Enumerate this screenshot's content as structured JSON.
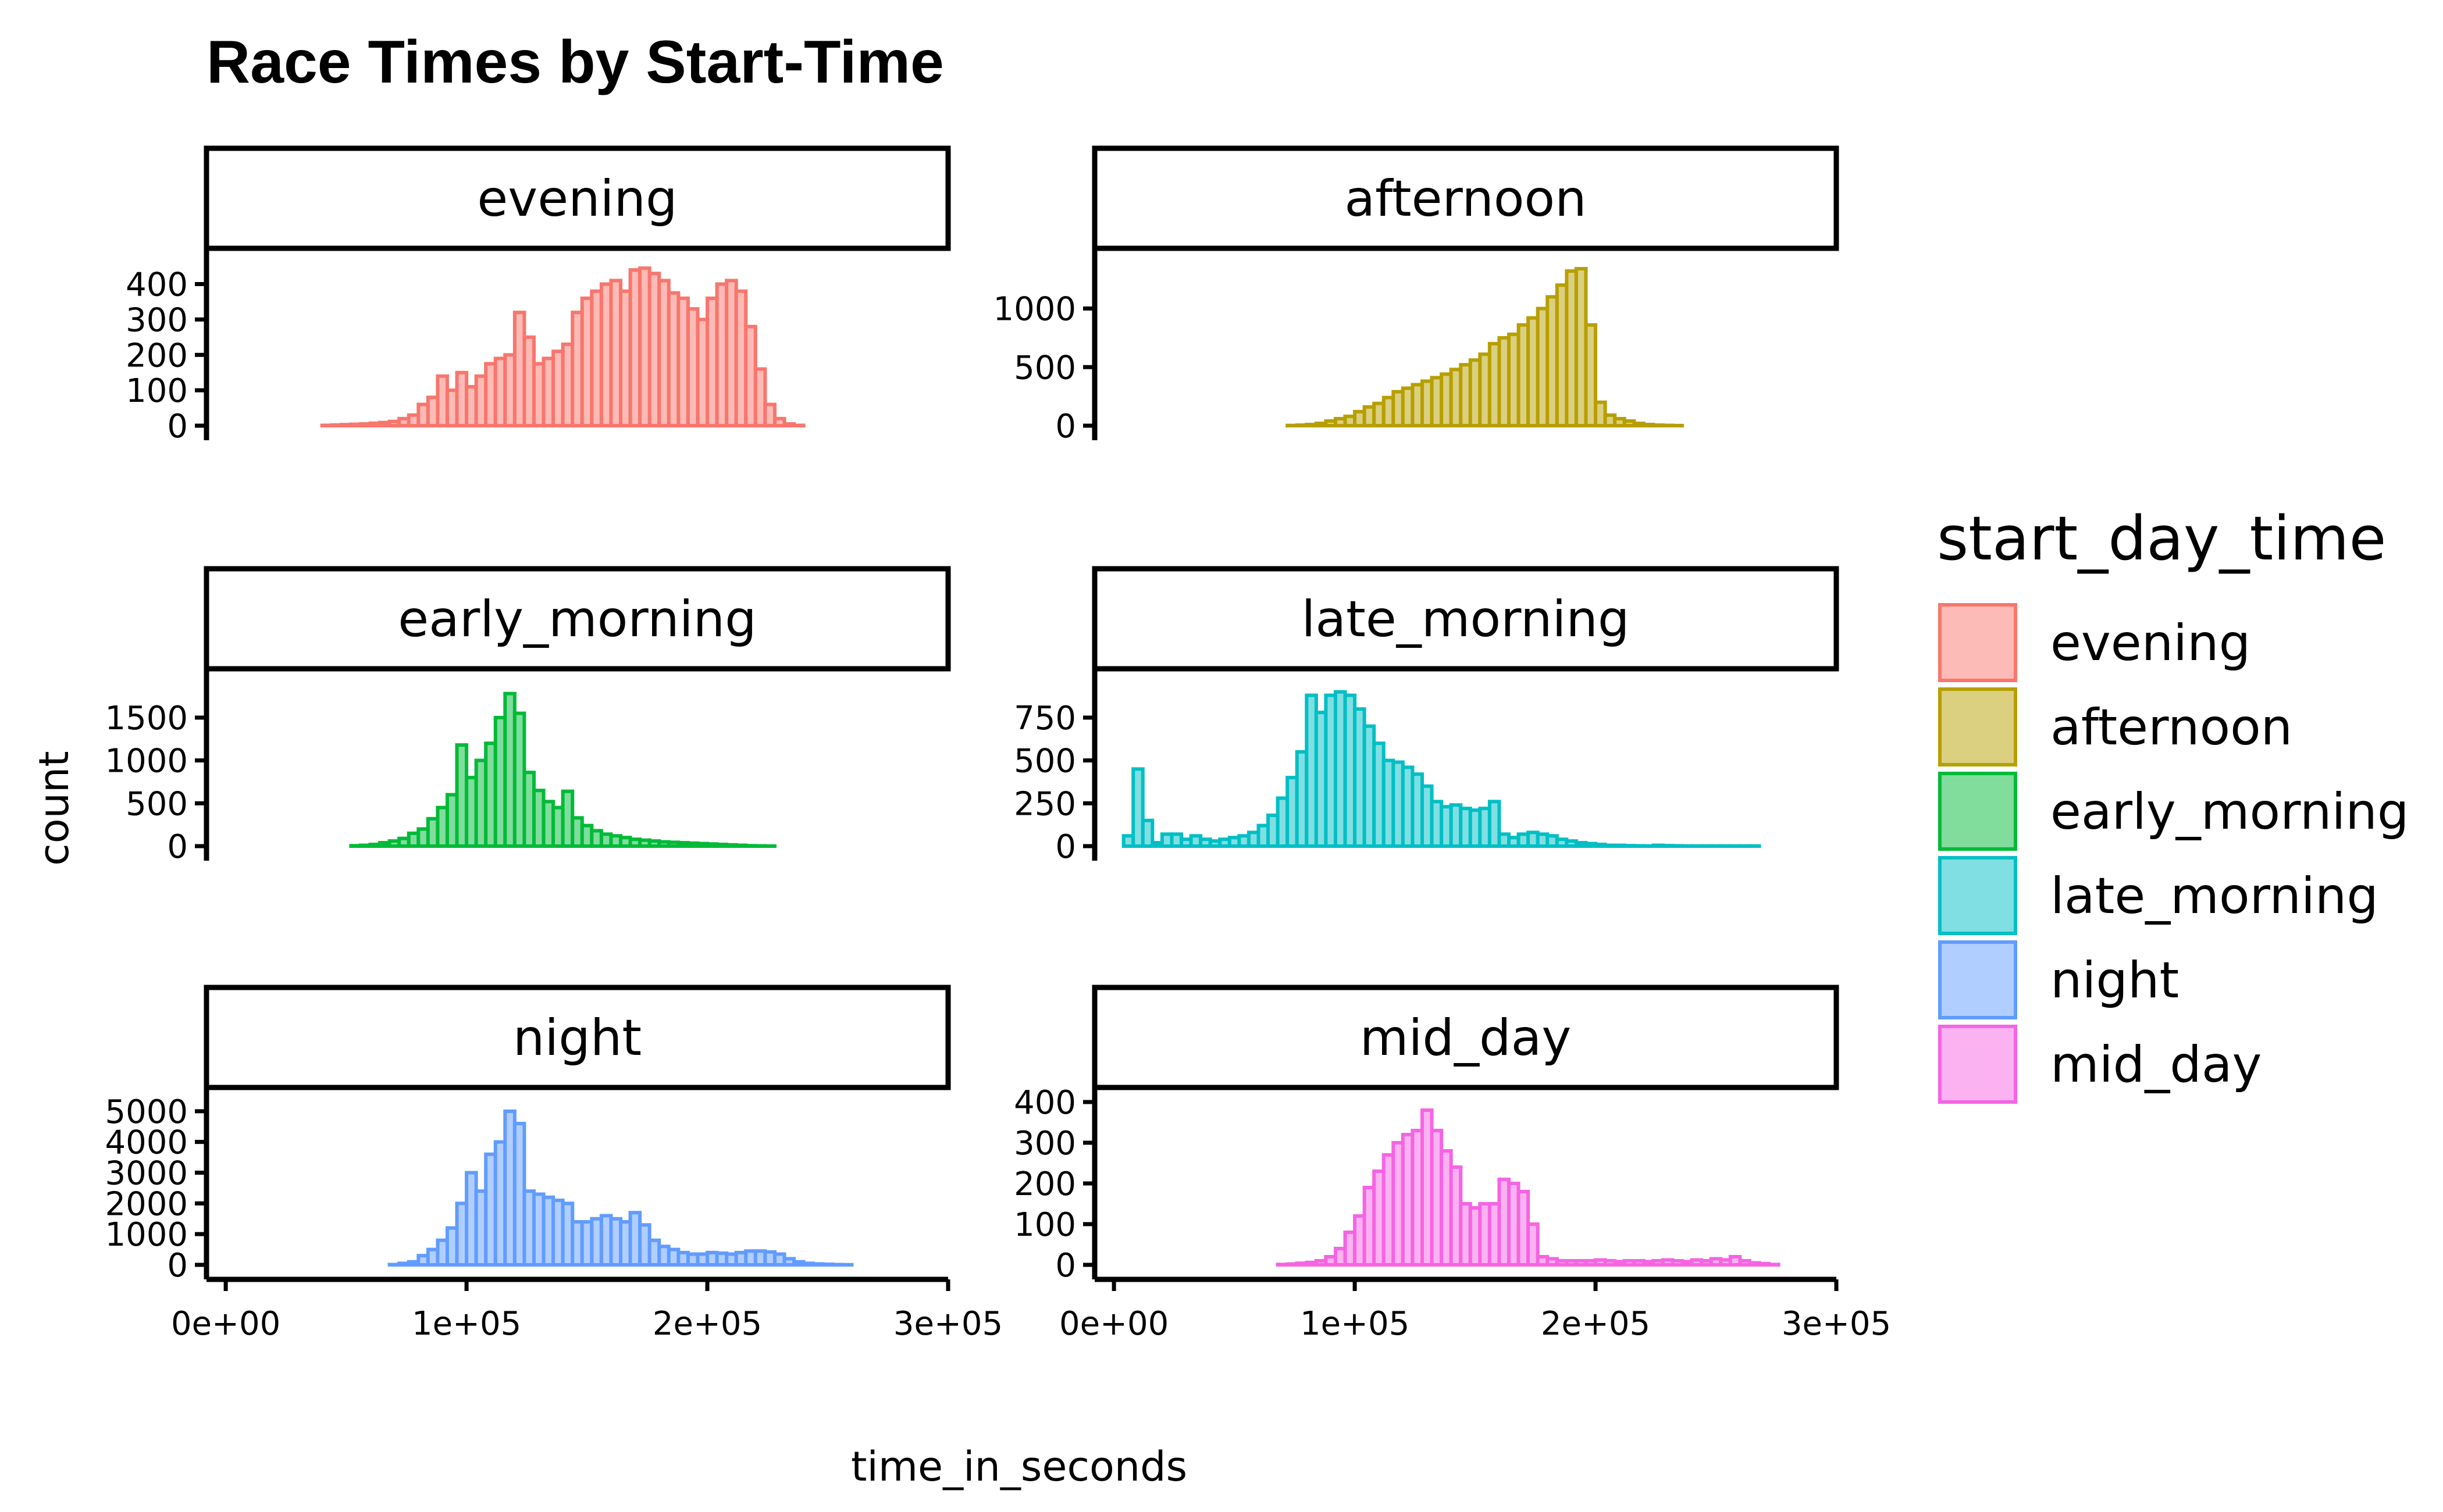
{
  "chart_data": {
    "type": "histogram-facets",
    "title": "Race Times by Start-Time",
    "xlabel": "time_in_seconds",
    "ylabel": "count",
    "xlim": [
      -8000,
      300000
    ],
    "x_ticks": [
      0,
      100000,
      200000,
      300000
    ],
    "x_tick_labels": [
      "0e+00",
      "1e+05",
      "2e+05",
      "3e+05"
    ],
    "bin_start": 2000,
    "bin_width": 4000,
    "legend": {
      "title": "start_day_time",
      "position": "right",
      "items": [
        "evening",
        "afternoon",
        "early_morning",
        "late_morning",
        "night",
        "mid_day"
      ]
    },
    "grid": false,
    "panels": [
      {
        "name": "evening",
        "color": "#F8766D",
        "y_ticks": [
          0,
          100,
          200,
          300,
          400
        ],
        "ymax": 460,
        "counts": [
          0,
          0,
          0,
          0,
          0,
          0,
          0,
          0,
          0,
          0,
          1,
          2,
          3,
          4,
          5,
          7,
          9,
          12,
          20,
          30,
          60,
          80,
          140,
          100,
          150,
          110,
          140,
          175,
          190,
          200,
          320,
          250,
          175,
          190,
          210,
          230,
          320,
          360,
          380,
          400,
          410,
          380,
          440,
          445,
          430,
          410,
          375,
          360,
          330,
          300,
          360,
          400,
          410,
          380,
          280,
          160,
          60,
          20,
          5,
          1,
          0,
          0,
          0,
          0,
          0,
          0,
          0,
          0,
          0,
          0,
          0,
          0,
          0,
          0,
          0
        ]
      },
      {
        "name": "afternoon",
        "color": "#B79F00",
        "y_ticks": [
          0,
          500,
          1000
        ],
        "ymax": 1390,
        "counts": [
          0,
          0,
          0,
          0,
          0,
          0,
          0,
          0,
          0,
          0,
          0,
          0,
          0,
          0,
          0,
          0,
          0,
          0,
          2,
          5,
          10,
          20,
          40,
          60,
          80,
          120,
          160,
          190,
          240,
          290,
          320,
          350,
          380,
          410,
          440,
          480,
          520,
          560,
          610,
          700,
          750,
          780,
          860,
          920,
          1000,
          1100,
          1200,
          1320,
          1340,
          860,
          200,
          90,
          60,
          40,
          20,
          10,
          5,
          3,
          1,
          0,
          0,
          0,
          0,
          0,
          0,
          0,
          0,
          0,
          0,
          0,
          0,
          0,
          0,
          0,
          0
        ]
      },
      {
        "name": "early_morning",
        "color": "#00BA38",
        "y_ticks": [
          0,
          500,
          1000,
          1500
        ],
        "ymax": 1900,
        "counts": [
          0,
          0,
          0,
          0,
          0,
          0,
          0,
          0,
          0,
          0,
          0,
          0,
          0,
          5,
          10,
          20,
          40,
          60,
          90,
          150,
          200,
          320,
          450,
          600,
          1180,
          800,
          1000,
          1200,
          1500,
          1780,
          1550,
          860,
          650,
          520,
          450,
          640,
          330,
          240,
          180,
          140,
          120,
          100,
          80,
          70,
          60,
          50,
          45,
          40,
          35,
          30,
          25,
          20,
          15,
          10,
          5,
          3,
          1,
          0,
          0,
          0,
          0,
          0,
          0,
          0,
          0,
          0,
          0,
          0,
          0,
          0,
          0,
          0,
          0,
          0,
          0
        ]
      },
      {
        "name": "late_morning",
        "color": "#00BFC4",
        "y_ticks": [
          0,
          250,
          500,
          750
        ],
        "ymax": 950,
        "counts": [
          0,
          60,
          450,
          150,
          20,
          70,
          70,
          40,
          60,
          40,
          30,
          40,
          50,
          60,
          80,
          120,
          180,
          280,
          400,
          550,
          880,
          780,
          880,
          900,
          880,
          800,
          700,
          600,
          500,
          490,
          460,
          420,
          350,
          260,
          230,
          240,
          220,
          210,
          220,
          260,
          70,
          50,
          70,
          80,
          70,
          60,
          40,
          30,
          20,
          15,
          10,
          5,
          5,
          3,
          2,
          1,
          5,
          3,
          2,
          1,
          1,
          1,
          1,
          1,
          1,
          1,
          1,
          0,
          0,
          0,
          0,
          0,
          0,
          0,
          0
        ]
      },
      {
        "name": "night",
        "color": "#619CFF",
        "y_ticks": [
          0,
          1000,
          2000,
          3000,
          4000,
          5000
        ],
        "ymax": 5300,
        "counts": [
          0,
          0,
          0,
          0,
          0,
          0,
          0,
          0,
          0,
          0,
          0,
          0,
          0,
          0,
          0,
          0,
          0,
          10,
          50,
          100,
          300,
          500,
          800,
          1200,
          2000,
          3000,
          2400,
          3600,
          4000,
          5000,
          4600,
          2400,
          2300,
          2200,
          2100,
          2000,
          1400,
          1400,
          1500,
          1600,
          1500,
          1400,
          1700,
          1300,
          800,
          600,
          500,
          400,
          350,
          350,
          400,
          380,
          350,
          400,
          450,
          450,
          420,
          350,
          200,
          100,
          50,
          30,
          20,
          10,
          5,
          0,
          0,
          0,
          0,
          0,
          0,
          0,
          0,
          0,
          0
        ]
      },
      {
        "name": "mid_day",
        "color": "#F564E3",
        "y_ticks": [
          0,
          100,
          200,
          300,
          400
        ],
        "ymax": 400,
        "counts": [
          0,
          0,
          0,
          0,
          0,
          0,
          0,
          0,
          0,
          0,
          0,
          0,
          0,
          0,
          0,
          0,
          0,
          1,
          2,
          4,
          6,
          10,
          20,
          40,
          80,
          120,
          190,
          230,
          270,
          300,
          320,
          330,
          380,
          330,
          280,
          240,
          150,
          140,
          150,
          150,
          210,
          200,
          180,
          100,
          20,
          15,
          10,
          10,
          10,
          10,
          12,
          10,
          8,
          10,
          10,
          8,
          10,
          12,
          10,
          8,
          12,
          10,
          15,
          12,
          20,
          10,
          5,
          3,
          1,
          0,
          0,
          0,
          0,
          0,
          0
        ]
      }
    ]
  }
}
